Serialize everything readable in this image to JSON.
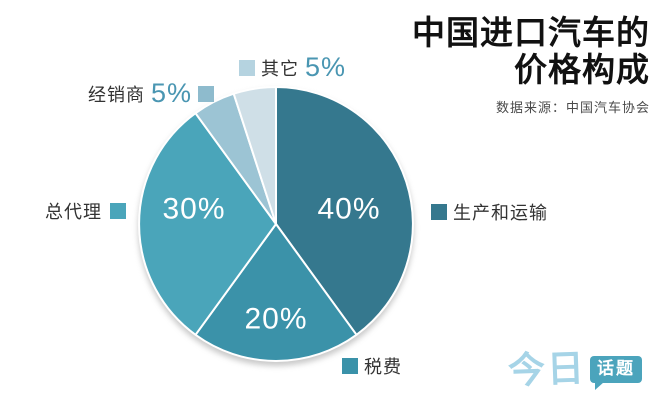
{
  "title": {
    "line1": "中国进口汽车的",
    "line2": "价格构成",
    "source": "数据来源：中国汽车协会"
  },
  "chart_data": {
    "type": "pie",
    "title": "中国进口汽车的价格构成",
    "source_note": "数据来源：中国汽车协会",
    "direction": "clockwise",
    "start_angle_deg": 0,
    "legend_position": "around",
    "slices": [
      {
        "label": "生产和运输",
        "value": 40,
        "pct_label": "40%",
        "color": "#35788e",
        "swatch_color": "#35788e",
        "pct_inside": true
      },
      {
        "label": "税费",
        "value": 20,
        "pct_label": "20%",
        "color": "#3b92a9",
        "swatch_color": "#3a92a9",
        "pct_inside": true
      },
      {
        "label": "总代理",
        "value": 30,
        "pct_label": "30%",
        "color": "#4aa5ba",
        "swatch_color": "#4aa5ba",
        "pct_inside": true
      },
      {
        "label": "经销商",
        "value": 5,
        "pct_label": "5%",
        "color": "#9cc4d4",
        "swatch_color": "#8ebbcd",
        "pct_inside": false
      },
      {
        "label": "其它",
        "value": 5,
        "pct_label": "5%",
        "color": "#cfdfe7",
        "swatch_color": "#b5d3e0",
        "pct_inside": false
      }
    ]
  },
  "logo": {
    "part1": "今日",
    "part2": "话题"
  }
}
